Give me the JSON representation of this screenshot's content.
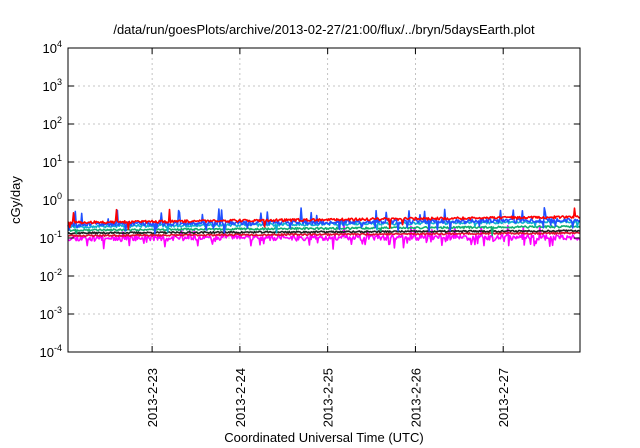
{
  "chart_data": {
    "type": "line",
    "title": "/data/run/goesPlots/archive/2013-02-27/21:00/flux/../bryn/5daysEarth.plot",
    "xlabel": "Coordinated Universal Time (UTC)",
    "ylabel": "cGy/day",
    "y_scale": "log",
    "ylim": [
      0.0001,
      10000
    ],
    "y_ticks": [
      {
        "value": 0.0001,
        "base": "10",
        "exp": "-4"
      },
      {
        "value": 0.001,
        "base": "10",
        "exp": "-3"
      },
      {
        "value": 0.01,
        "base": "10",
        "exp": "-2"
      },
      {
        "value": 0.1,
        "base": "10",
        "exp": "-1"
      },
      {
        "value": 1,
        "base": "10",
        "exp": "0"
      },
      {
        "value": 10,
        "base": "10",
        "exp": "1"
      },
      {
        "value": 100,
        "base": "10",
        "exp": "2"
      },
      {
        "value": 1000,
        "base": "10",
        "exp": "3"
      },
      {
        "value": 10000,
        "base": "10",
        "exp": "4"
      }
    ],
    "xlim": [
      "2013-02-22T01:00",
      "2013-02-27T21:00"
    ],
    "x_ticks": [
      {
        "value": "2013-02-23T00:00",
        "label": "2013-2-23"
      },
      {
        "value": "2013-02-24T00:00",
        "label": "2013-2-24"
      },
      {
        "value": "2013-02-25T00:00",
        "label": "2013-2-25"
      },
      {
        "value": "2013-02-26T00:00",
        "label": "2013-2-26"
      },
      {
        "value": "2013-02-27T00:00",
        "label": "2013-2-27"
      }
    ],
    "grid": true,
    "legend": "none",
    "series": [
      {
        "color": "#ff00ff",
        "base": 0.1,
        "end": 0.105,
        "noise": 0.16,
        "dips": 0.3,
        "spikes": 0.02,
        "seed": 11
      },
      {
        "color": "#e01030",
        "base": 0.115,
        "end": 0.135,
        "noise": 0.05,
        "dips": 0.0,
        "spikes": 0.0,
        "seed": 23
      },
      {
        "color": "#202020",
        "base": 0.135,
        "end": 0.155,
        "noise": 0.05,
        "dips": 0.0,
        "spikes": 0.0,
        "seed": 37
      },
      {
        "color": "#10b070",
        "base": 0.16,
        "end": 0.2,
        "noise": 0.06,
        "dips": 0.02,
        "spikes": 0.0,
        "seed": 41
      },
      {
        "color": "#10b0d0",
        "base": 0.2,
        "end": 0.27,
        "noise": 0.09,
        "dips": 0.06,
        "spikes": 0.0,
        "seed": 53
      },
      {
        "color": "#2050ff",
        "base": 0.23,
        "end": 0.3,
        "noise": 0.12,
        "dips": 0.12,
        "spikes": 0.04,
        "seed": 67
      },
      {
        "color": "#ff0000",
        "base": 0.255,
        "end": 0.36,
        "noise": 0.08,
        "dips": 0.05,
        "spikes": 0.02,
        "seed": 79
      }
    ]
  }
}
